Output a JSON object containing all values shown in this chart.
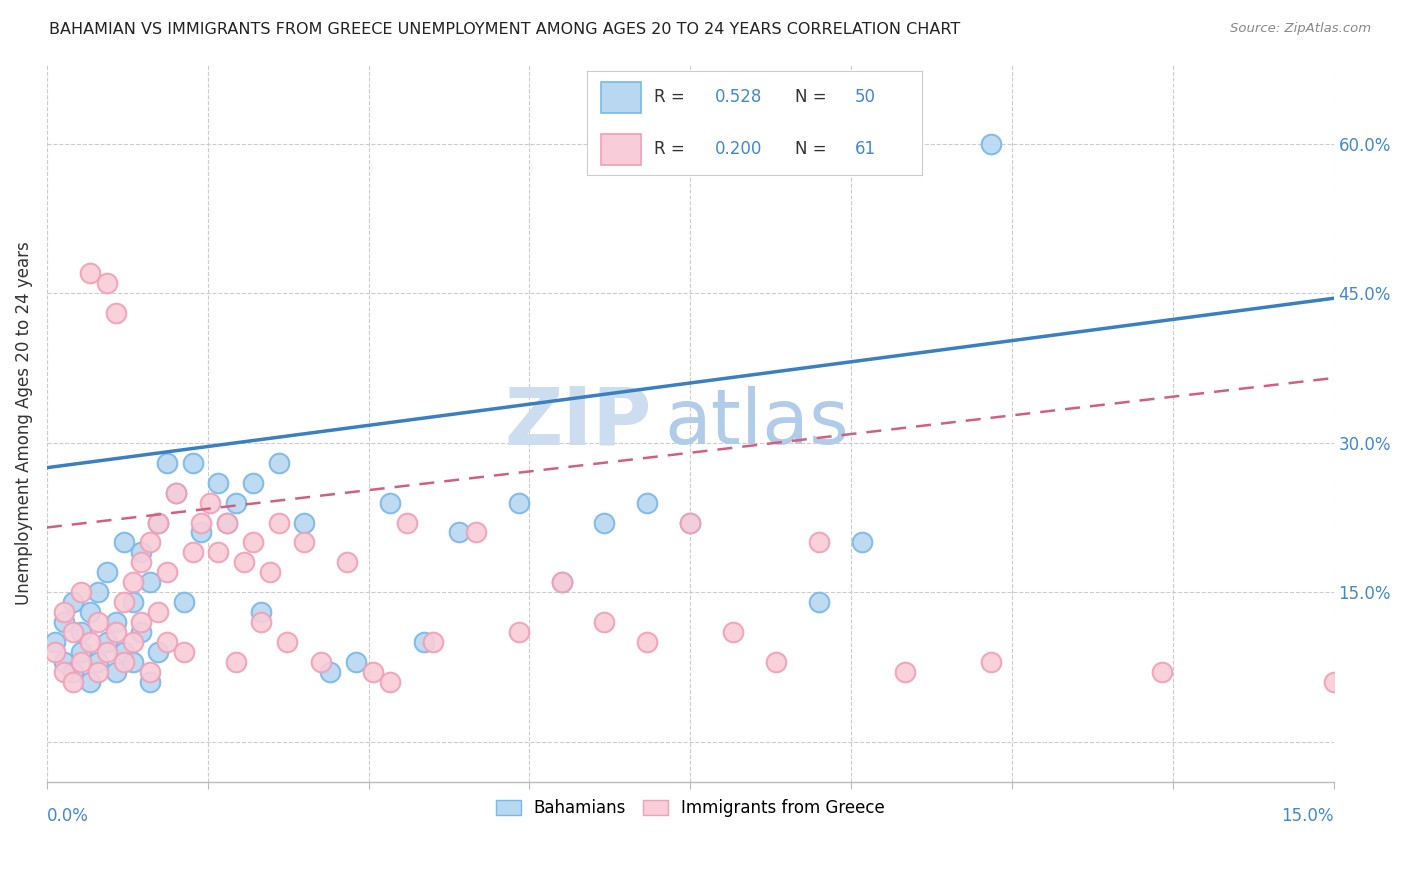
{
  "title": "BAHAMIAN VS IMMIGRANTS FROM GREECE UNEMPLOYMENT AMONG AGES 20 TO 24 YEARS CORRELATION CHART",
  "source": "Source: ZipAtlas.com",
  "ylabel": "Unemployment Among Ages 20 to 24 years",
  "x_min": 0.0,
  "x_max": 0.15,
  "y_min": -0.04,
  "y_max": 0.68,
  "blue_color": "#7ab8e8",
  "blue_fill": "#b8d8f0",
  "pink_color": "#f0a0b8",
  "pink_fill": "#f8ccd8",
  "line_blue": "#3a7fc1",
  "line_pink": "#d06080",
  "R_blue": 0.528,
  "N_blue": 50,
  "R_pink": 0.2,
  "N_pink": 61,
  "watermark_zip": "ZIP",
  "watermark_atlas": "atlas",
  "watermark_color_zip": "#c8dcf0",
  "watermark_color_atlas": "#a0c0e0",
  "blue_line_x0": 0.0,
  "blue_line_y0": 0.275,
  "blue_line_x1": 0.15,
  "blue_line_y1": 0.445,
  "pink_line_x0": 0.0,
  "pink_line_y0": 0.215,
  "pink_line_x1": 0.15,
  "pink_line_y1": 0.365,
  "blue_x": [
    0.001,
    0.002,
    0.002,
    0.003,
    0.003,
    0.004,
    0.004,
    0.005,
    0.005,
    0.006,
    0.006,
    0.007,
    0.007,
    0.008,
    0.008,
    0.009,
    0.009,
    0.01,
    0.01,
    0.011,
    0.011,
    0.012,
    0.012,
    0.013,
    0.013,
    0.014,
    0.015,
    0.016,
    0.017,
    0.018,
    0.02,
    0.021,
    0.022,
    0.024,
    0.025,
    0.027,
    0.03,
    0.033,
    0.036,
    0.04,
    0.044,
    0.048,
    0.055,
    0.06,
    0.065,
    0.07,
    0.075,
    0.09,
    0.095,
    0.11
  ],
  "blue_y": [
    0.1,
    0.08,
    0.12,
    0.07,
    0.14,
    0.09,
    0.11,
    0.06,
    0.13,
    0.08,
    0.15,
    0.1,
    0.17,
    0.07,
    0.12,
    0.09,
    0.2,
    0.08,
    0.14,
    0.11,
    0.19,
    0.06,
    0.16,
    0.09,
    0.22,
    0.28,
    0.25,
    0.14,
    0.28,
    0.21,
    0.26,
    0.22,
    0.24,
    0.26,
    0.13,
    0.28,
    0.22,
    0.07,
    0.08,
    0.24,
    0.1,
    0.21,
    0.24,
    0.16,
    0.22,
    0.24,
    0.22,
    0.14,
    0.2,
    0.6
  ],
  "pink_x": [
    0.001,
    0.002,
    0.002,
    0.003,
    0.003,
    0.004,
    0.004,
    0.005,
    0.005,
    0.006,
    0.006,
    0.007,
    0.007,
    0.008,
    0.008,
    0.009,
    0.009,
    0.01,
    0.01,
    0.011,
    0.011,
    0.012,
    0.012,
    0.013,
    0.013,
    0.014,
    0.014,
    0.015,
    0.016,
    0.017,
    0.018,
    0.019,
    0.02,
    0.021,
    0.022,
    0.023,
    0.024,
    0.025,
    0.026,
    0.027,
    0.028,
    0.03,
    0.032,
    0.035,
    0.038,
    0.04,
    0.042,
    0.045,
    0.05,
    0.055,
    0.06,
    0.065,
    0.07,
    0.075,
    0.08,
    0.085,
    0.09,
    0.1,
    0.11,
    0.13,
    0.15
  ],
  "pink_y": [
    0.09,
    0.07,
    0.13,
    0.06,
    0.11,
    0.08,
    0.15,
    0.1,
    0.47,
    0.07,
    0.12,
    0.09,
    0.46,
    0.43,
    0.11,
    0.14,
    0.08,
    0.1,
    0.16,
    0.12,
    0.18,
    0.07,
    0.2,
    0.13,
    0.22,
    0.1,
    0.17,
    0.25,
    0.09,
    0.19,
    0.22,
    0.24,
    0.19,
    0.22,
    0.08,
    0.18,
    0.2,
    0.12,
    0.17,
    0.22,
    0.1,
    0.2,
    0.08,
    0.18,
    0.07,
    0.06,
    0.22,
    0.1,
    0.21,
    0.11,
    0.16,
    0.12,
    0.1,
    0.22,
    0.11,
    0.08,
    0.2,
    0.07,
    0.08,
    0.07,
    0.06
  ]
}
